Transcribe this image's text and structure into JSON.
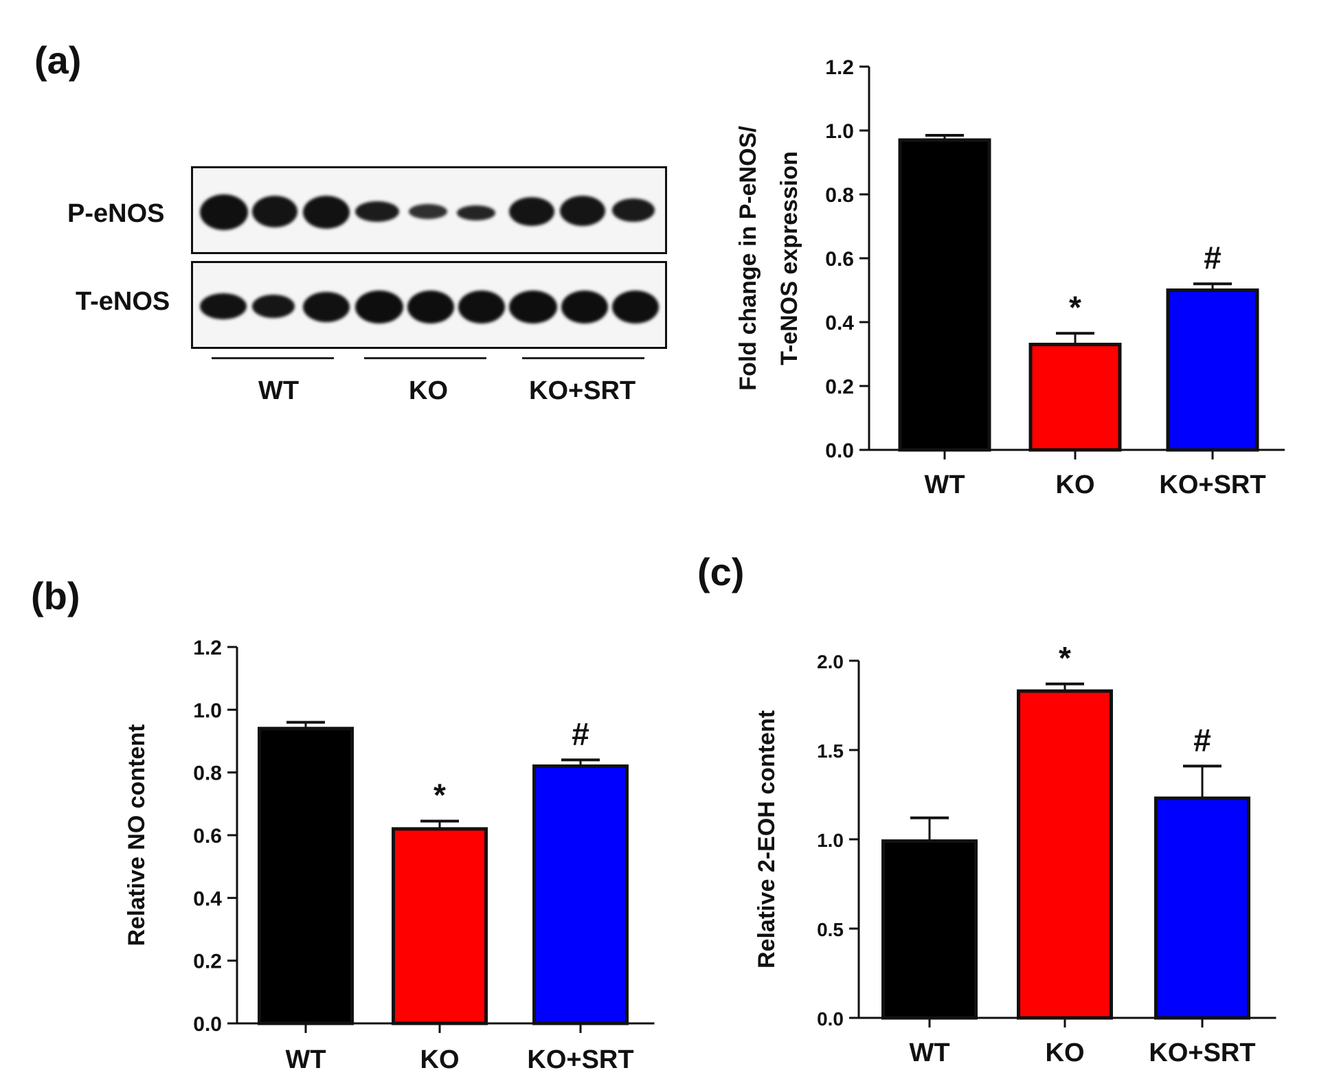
{
  "panels": {
    "a": "(a)",
    "b": "(b)",
    "c": "(c)"
  },
  "blot": {
    "row_labels": {
      "p": "P-eNOS",
      "t": "T-eNOS"
    },
    "groups": [
      "WT",
      "KO",
      "KO+SRT"
    ]
  },
  "chart_data": [
    {
      "id": "a",
      "type": "bar",
      "categories": [
        "WT",
        "KO",
        "KO+SRT"
      ],
      "values": [
        0.97,
        0.33,
        0.5
      ],
      "errors": [
        0.015,
        0.035,
        0.02
      ],
      "colors": [
        "#000000",
        "#ff0000",
        "#0000ff"
      ],
      "annotations": [
        "",
        "*",
        "#"
      ],
      "ylabel": [
        "Fold change in P-eNOS/",
        "T-eNOS  expression"
      ],
      "ylim": [
        0,
        1.2
      ],
      "yticks": [
        "0.0",
        "0.2",
        "0.4",
        "0.6",
        "0.8",
        "1.0",
        "1.2"
      ],
      "ytick_values": [
        0,
        0.2,
        0.4,
        0.6,
        0.8,
        1.0,
        1.2
      ]
    },
    {
      "id": "b",
      "type": "bar",
      "categories": [
        "WT",
        "KO",
        "KO+SRT"
      ],
      "values": [
        0.94,
        0.62,
        0.82
      ],
      "errors": [
        0.02,
        0.025,
        0.02
      ],
      "colors": [
        "#000000",
        "#ff0000",
        "#0000ff"
      ],
      "annotations": [
        "",
        "*",
        "#"
      ],
      "ylabel": [
        "Relative NO content"
      ],
      "ylim": [
        0,
        1.2
      ],
      "yticks": [
        "0.0",
        "0.2",
        "0.4",
        "0.6",
        "0.8",
        "1.0",
        "1.2"
      ],
      "ytick_values": [
        0,
        0.2,
        0.4,
        0.6,
        0.8,
        1.0,
        1.2
      ]
    },
    {
      "id": "c",
      "type": "bar",
      "categories": [
        "WT",
        "KO",
        "KO+SRT"
      ],
      "values": [
        0.99,
        1.83,
        1.23
      ],
      "errors": [
        0.13,
        0.04,
        0.18
      ],
      "colors": [
        "#000000",
        "#ff0000",
        "#0000ff"
      ],
      "annotations": [
        "",
        "*",
        "#"
      ],
      "ylabel": [
        "Relative 2-EOH content"
      ],
      "ylim": [
        0,
        2.0
      ],
      "yticks": [
        "0.0",
        "0.5",
        "1.0",
        "1.5",
        "2.0"
      ],
      "ytick_values": [
        0,
        0.5,
        1.0,
        1.5,
        2.0
      ]
    }
  ]
}
